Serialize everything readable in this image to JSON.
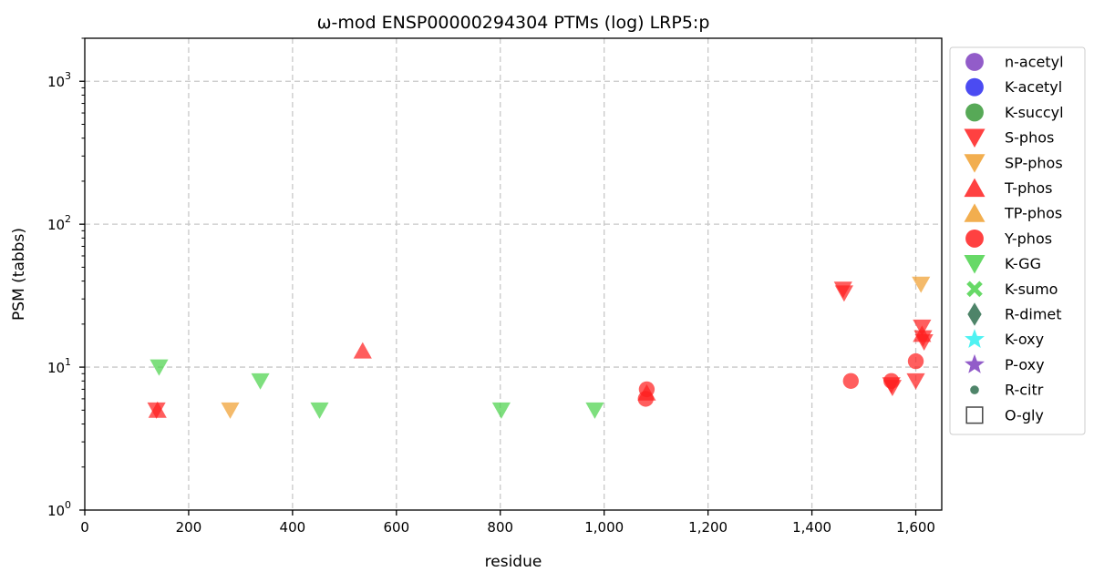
{
  "chart_data": {
    "type": "scatter",
    "title": "ω-mod ENSP00000294304 PTMs (log) LRP5:p",
    "xlabel": "residue",
    "ylabel": "PSM (tabbs)",
    "xlim": [
      0,
      1650
    ],
    "ylim": [
      1,
      2000
    ],
    "yscale": "log",
    "grid": true,
    "legend_position": "outside-right",
    "x_ticks": [
      {
        "value": 0,
        "label": "0"
      },
      {
        "value": 200,
        "label": "200"
      },
      {
        "value": 400,
        "label": "400"
      },
      {
        "value": 600,
        "label": "600"
      },
      {
        "value": 800,
        "label": "800"
      },
      {
        "value": 1000,
        "label": "1,000"
      },
      {
        "value": 1200,
        "label": "1,200"
      },
      {
        "value": 1400,
        "label": "1,400"
      },
      {
        "value": 1600,
        "label": "1,600"
      }
    ],
    "y_ticks": [
      {
        "value": 1,
        "base": "10",
        "exp": "0"
      },
      {
        "value": 10,
        "base": "10",
        "exp": "1"
      },
      {
        "value": 100,
        "base": "10",
        "exp": "2"
      },
      {
        "value": 1000,
        "base": "10",
        "exp": "3"
      }
    ],
    "series": [
      {
        "name": "n-acetyl",
        "marker": "circle",
        "color": "#7f3fbf",
        "points": []
      },
      {
        "name": "K-acetyl",
        "marker": "circle",
        "color": "#2b2bf0",
        "points": []
      },
      {
        "name": "K-succyl",
        "marker": "circle",
        "color": "#3a9a3a",
        "points": []
      },
      {
        "name": "S-phos",
        "marker": "triangle-down",
        "color": "#ff2020",
        "points": [
          [
            138,
            5
          ],
          [
            1460,
            35
          ],
          [
            1462,
            33
          ],
          [
            1553,
            7.5
          ],
          [
            1555,
            7.2
          ],
          [
            1600,
            8
          ],
          [
            1612,
            19
          ],
          [
            1614,
            16
          ],
          [
            1616,
            15
          ]
        ]
      },
      {
        "name": "SP-phos",
        "marker": "triangle-down",
        "color": "#f0a030",
        "points": [
          [
            280,
            5
          ],
          [
            1610,
            38
          ]
        ]
      },
      {
        "name": "T-phos",
        "marker": "triangle-up",
        "color": "#ff2020",
        "points": [
          [
            140,
            5
          ],
          [
            535,
            13
          ],
          [
            1082,
            6.6
          ],
          [
            1612,
            17
          ]
        ]
      },
      {
        "name": "TP-phos",
        "marker": "triangle-up",
        "color": "#f0a030",
        "points": []
      },
      {
        "name": "Y-phos",
        "marker": "circle",
        "color": "#ff2020",
        "points": [
          [
            1080,
            6
          ],
          [
            1082,
            7
          ],
          [
            1475,
            8
          ],
          [
            1553,
            8
          ],
          [
            1600,
            11
          ]
        ]
      },
      {
        "name": "K-GG",
        "marker": "triangle-down",
        "color": "#4cd24c",
        "points": [
          [
            143,
            10
          ],
          [
            338,
            8
          ],
          [
            452,
            5
          ],
          [
            802,
            5
          ],
          [
            982,
            5
          ]
        ]
      },
      {
        "name": "K-sumo",
        "marker": "x",
        "color": "#4cd24c",
        "points": []
      },
      {
        "name": "R-dimet",
        "marker": "diamond",
        "color": "#2f6f4f",
        "points": []
      },
      {
        "name": "K-oxy",
        "marker": "star",
        "color": "#30f0f0",
        "points": []
      },
      {
        "name": "P-oxy",
        "marker": "star",
        "color": "#7f3fbf",
        "points": []
      },
      {
        "name": "R-citr",
        "marker": "small-circle",
        "color": "#2f6f4f",
        "points": []
      },
      {
        "name": "O-gly",
        "marker": "square-open",
        "color": "#444444",
        "points": []
      }
    ]
  }
}
